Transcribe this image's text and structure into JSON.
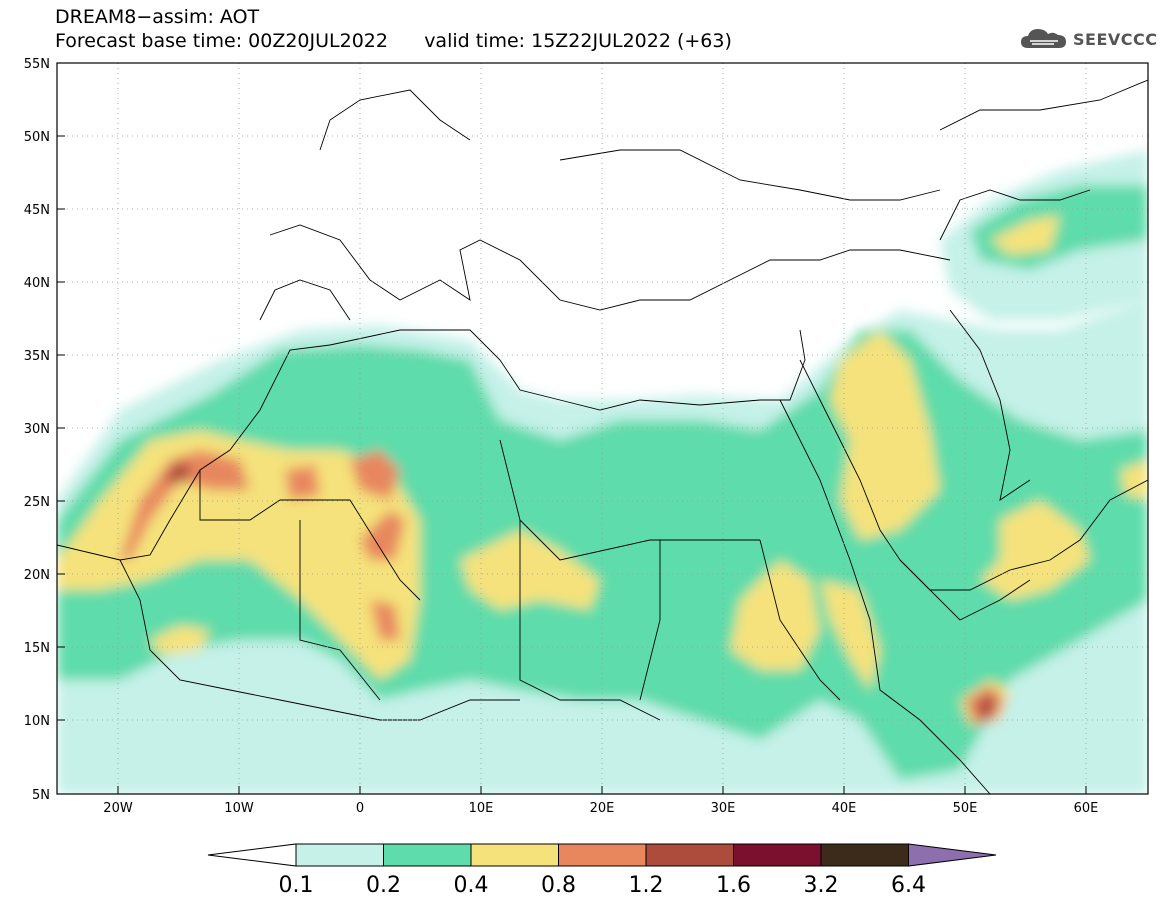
{
  "title": {
    "line1": "DREAM8−assim: AOT",
    "line2": "Forecast base time: 00Z20JUL2022      valid time: 15Z22JUL2022 (+63)"
  },
  "logo": {
    "text": "SEEVCCC",
    "icon": "cloud-icon"
  },
  "map": {
    "lon_range": [
      -25,
      65
    ],
    "lat_range": [
      5,
      55
    ],
    "x_ticks": [
      "20W",
      "10W",
      "0",
      "10E",
      "20E",
      "30E",
      "40E",
      "50E",
      "60E"
    ],
    "y_ticks": [
      "55N",
      "50N",
      "45N",
      "40N",
      "35N",
      "30N",
      "25N",
      "20N",
      "15N",
      "10N",
      "5N"
    ],
    "grid": "dotted"
  },
  "colorbar": {
    "colors": [
      "#ffffff",
      "#c5f1e8",
      "#5fdcab",
      "#f5e27b",
      "#e8875e",
      "#ad4c3d",
      "#7a0f2e",
      "#3c2a1b",
      "#8e6fae"
    ],
    "labels": [
      "0.1",
      "0.2",
      "0.4",
      "0.8",
      "1.2",
      "1.6",
      "3.2",
      "6.4"
    ]
  }
}
